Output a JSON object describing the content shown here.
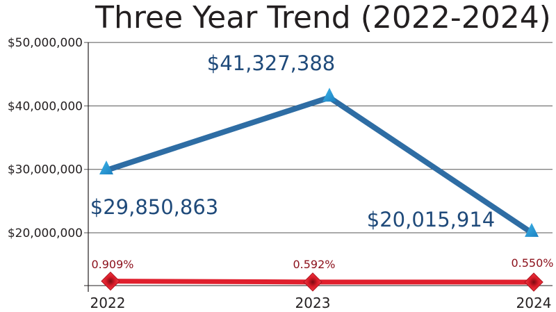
{
  "chart_data": {
    "type": "line",
    "title": "Three Year Trend (2022-2024)",
    "categories": [
      "2022",
      "2023",
      "2024"
    ],
    "y_ticks": [
      "$20,000,000",
      "$30,000,000",
      "$40,000,000",
      "$50,000,000"
    ],
    "y_tick_values": [
      20000000,
      30000000,
      40000000,
      50000000
    ],
    "grid": true,
    "series": [
      {
        "values": [
          29850863,
          41327388,
          20015914
        ],
        "labels": [
          "$29,850,863",
          "$41,327,388",
          "$20,015,914"
        ],
        "color": "#2e6da4",
        "marker": "triangle",
        "marker_color": "#29a3dc"
      },
      {
        "values": [
          0.909,
          0.592,
          0.55
        ],
        "labels": [
          "0.909%",
          "0.592%",
          "0.550%"
        ],
        "unit": "%",
        "color": "#e01f2d",
        "marker": "diamond",
        "marker_color": "#e3202e"
      }
    ]
  }
}
